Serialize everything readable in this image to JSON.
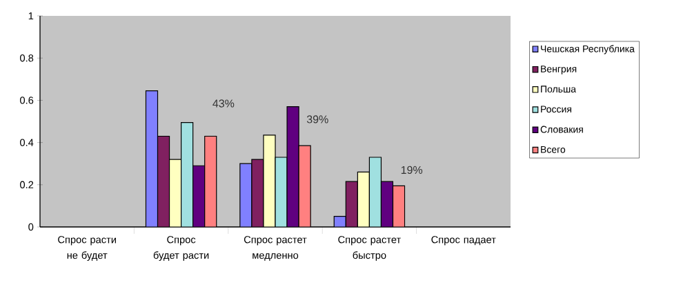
{
  "chart_data": {
    "type": "bar",
    "categories": [
      "Спрос расти не будет",
      "Спрос будет расти",
      "Спрос растет медленно",
      "Спрос растет быстро",
      "Спрос падает"
    ],
    "series": [
      {
        "name": "Чешская Республика",
        "color": "#8080ff",
        "values": [
          null,
          0.645,
          0.3,
          0.05,
          null
        ]
      },
      {
        "name": "Венгрия",
        "color": "#802060",
        "values": [
          null,
          0.43,
          0.32,
          0.215,
          null
        ]
      },
      {
        "name": "Польша",
        "color": "#ffffc0",
        "values": [
          null,
          0.32,
          0.435,
          0.26,
          null
        ]
      },
      {
        "name": "Россия",
        "color": "#a0e0e0",
        "values": [
          null,
          0.495,
          0.33,
          0.33,
          null
        ]
      },
      {
        "name": "Словакия",
        "color": "#600080",
        "values": [
          null,
          0.29,
          0.57,
          0.215,
          null
        ]
      },
      {
        "name": "Всего",
        "color": "#ff8080",
        "values": [
          null,
          0.43,
          0.385,
          0.195,
          null
        ]
      }
    ],
    "ylim": [
      0,
      1
    ],
    "yticks": [
      0,
      0.2,
      0.4,
      0.6,
      0.8,
      1
    ],
    "annotations": [
      "43%",
      "39%",
      "19%"
    ],
    "grid": false,
    "legend": "right"
  }
}
